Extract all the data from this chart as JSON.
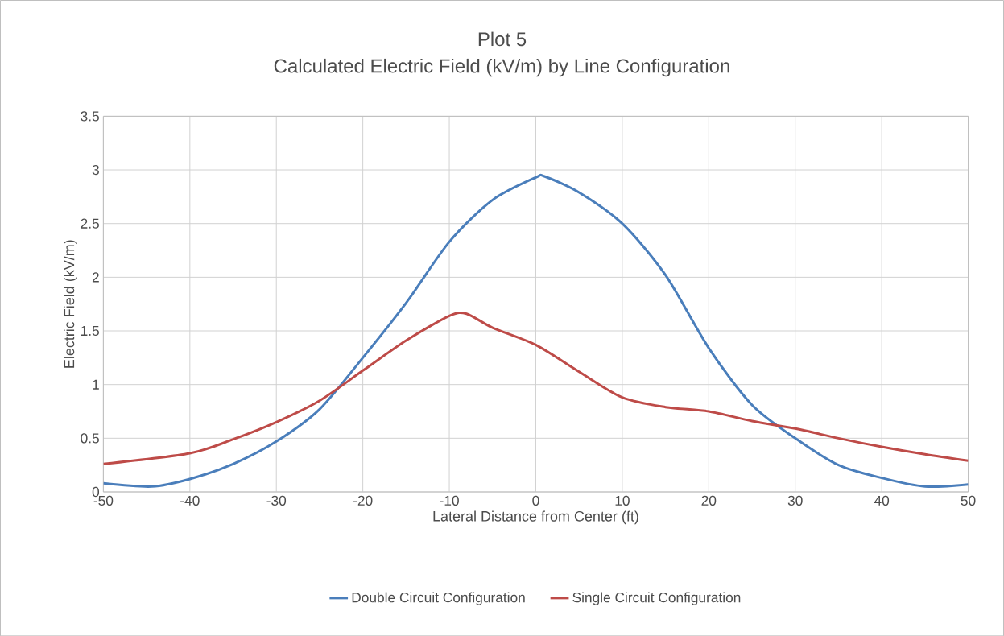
{
  "chart_data": {
    "type": "line",
    "title": "Plot 5",
    "subtitle": "Calculated Electric Field (kV/m) by Line Configuration",
    "xlabel": "Lateral Distance from Center (ft)",
    "ylabel": "Electric Field (kV/m)",
    "x": [
      -50,
      -44.4,
      -40,
      -35,
      -30,
      -25,
      -20,
      -15,
      -10,
      -5,
      0,
      1,
      5,
      10,
      15,
      20,
      25,
      30,
      35,
      40,
      45,
      50
    ],
    "series": [
      {
        "name": "Double Circuit Configuration",
        "color": "#4a7ebb",
        "values": [
          0.08,
          0.05,
          0.12,
          0.26,
          0.47,
          0.77,
          1.25,
          1.76,
          2.33,
          2.72,
          2.93,
          2.94,
          2.79,
          2.5,
          2.02,
          1.34,
          0.81,
          0.5,
          0.25,
          0.13,
          0.05,
          0.07
        ]
      },
      {
        "name": "Single Circuit Configuration",
        "color": "#be4b48",
        "x": [
          -50,
          -40,
          -35,
          -30,
          -25,
          -20,
          -15,
          -10,
          -8,
          -5,
          0,
          5,
          10,
          15,
          20,
          25,
          30,
          35,
          40,
          45,
          50
        ],
        "values": [
          0.26,
          0.36,
          0.49,
          0.65,
          0.85,
          1.13,
          1.41,
          1.64,
          1.66,
          1.53,
          1.37,
          1.12,
          0.88,
          0.79,
          0.75,
          0.66,
          0.59,
          0.5,
          0.42,
          0.35,
          0.29
        ]
      }
    ],
    "xlim": [
      -50,
      50
    ],
    "xticks": [
      -50,
      -40,
      -30,
      -20,
      -10,
      0,
      10,
      20,
      30,
      40,
      50
    ],
    "ylim": [
      0,
      3.5
    ],
    "yticks": [
      0,
      0.5,
      1,
      1.5,
      2,
      2.5,
      3,
      3.5
    ],
    "grid": true,
    "legend": "bottom",
    "marker": "none",
    "line_style": "solid"
  }
}
